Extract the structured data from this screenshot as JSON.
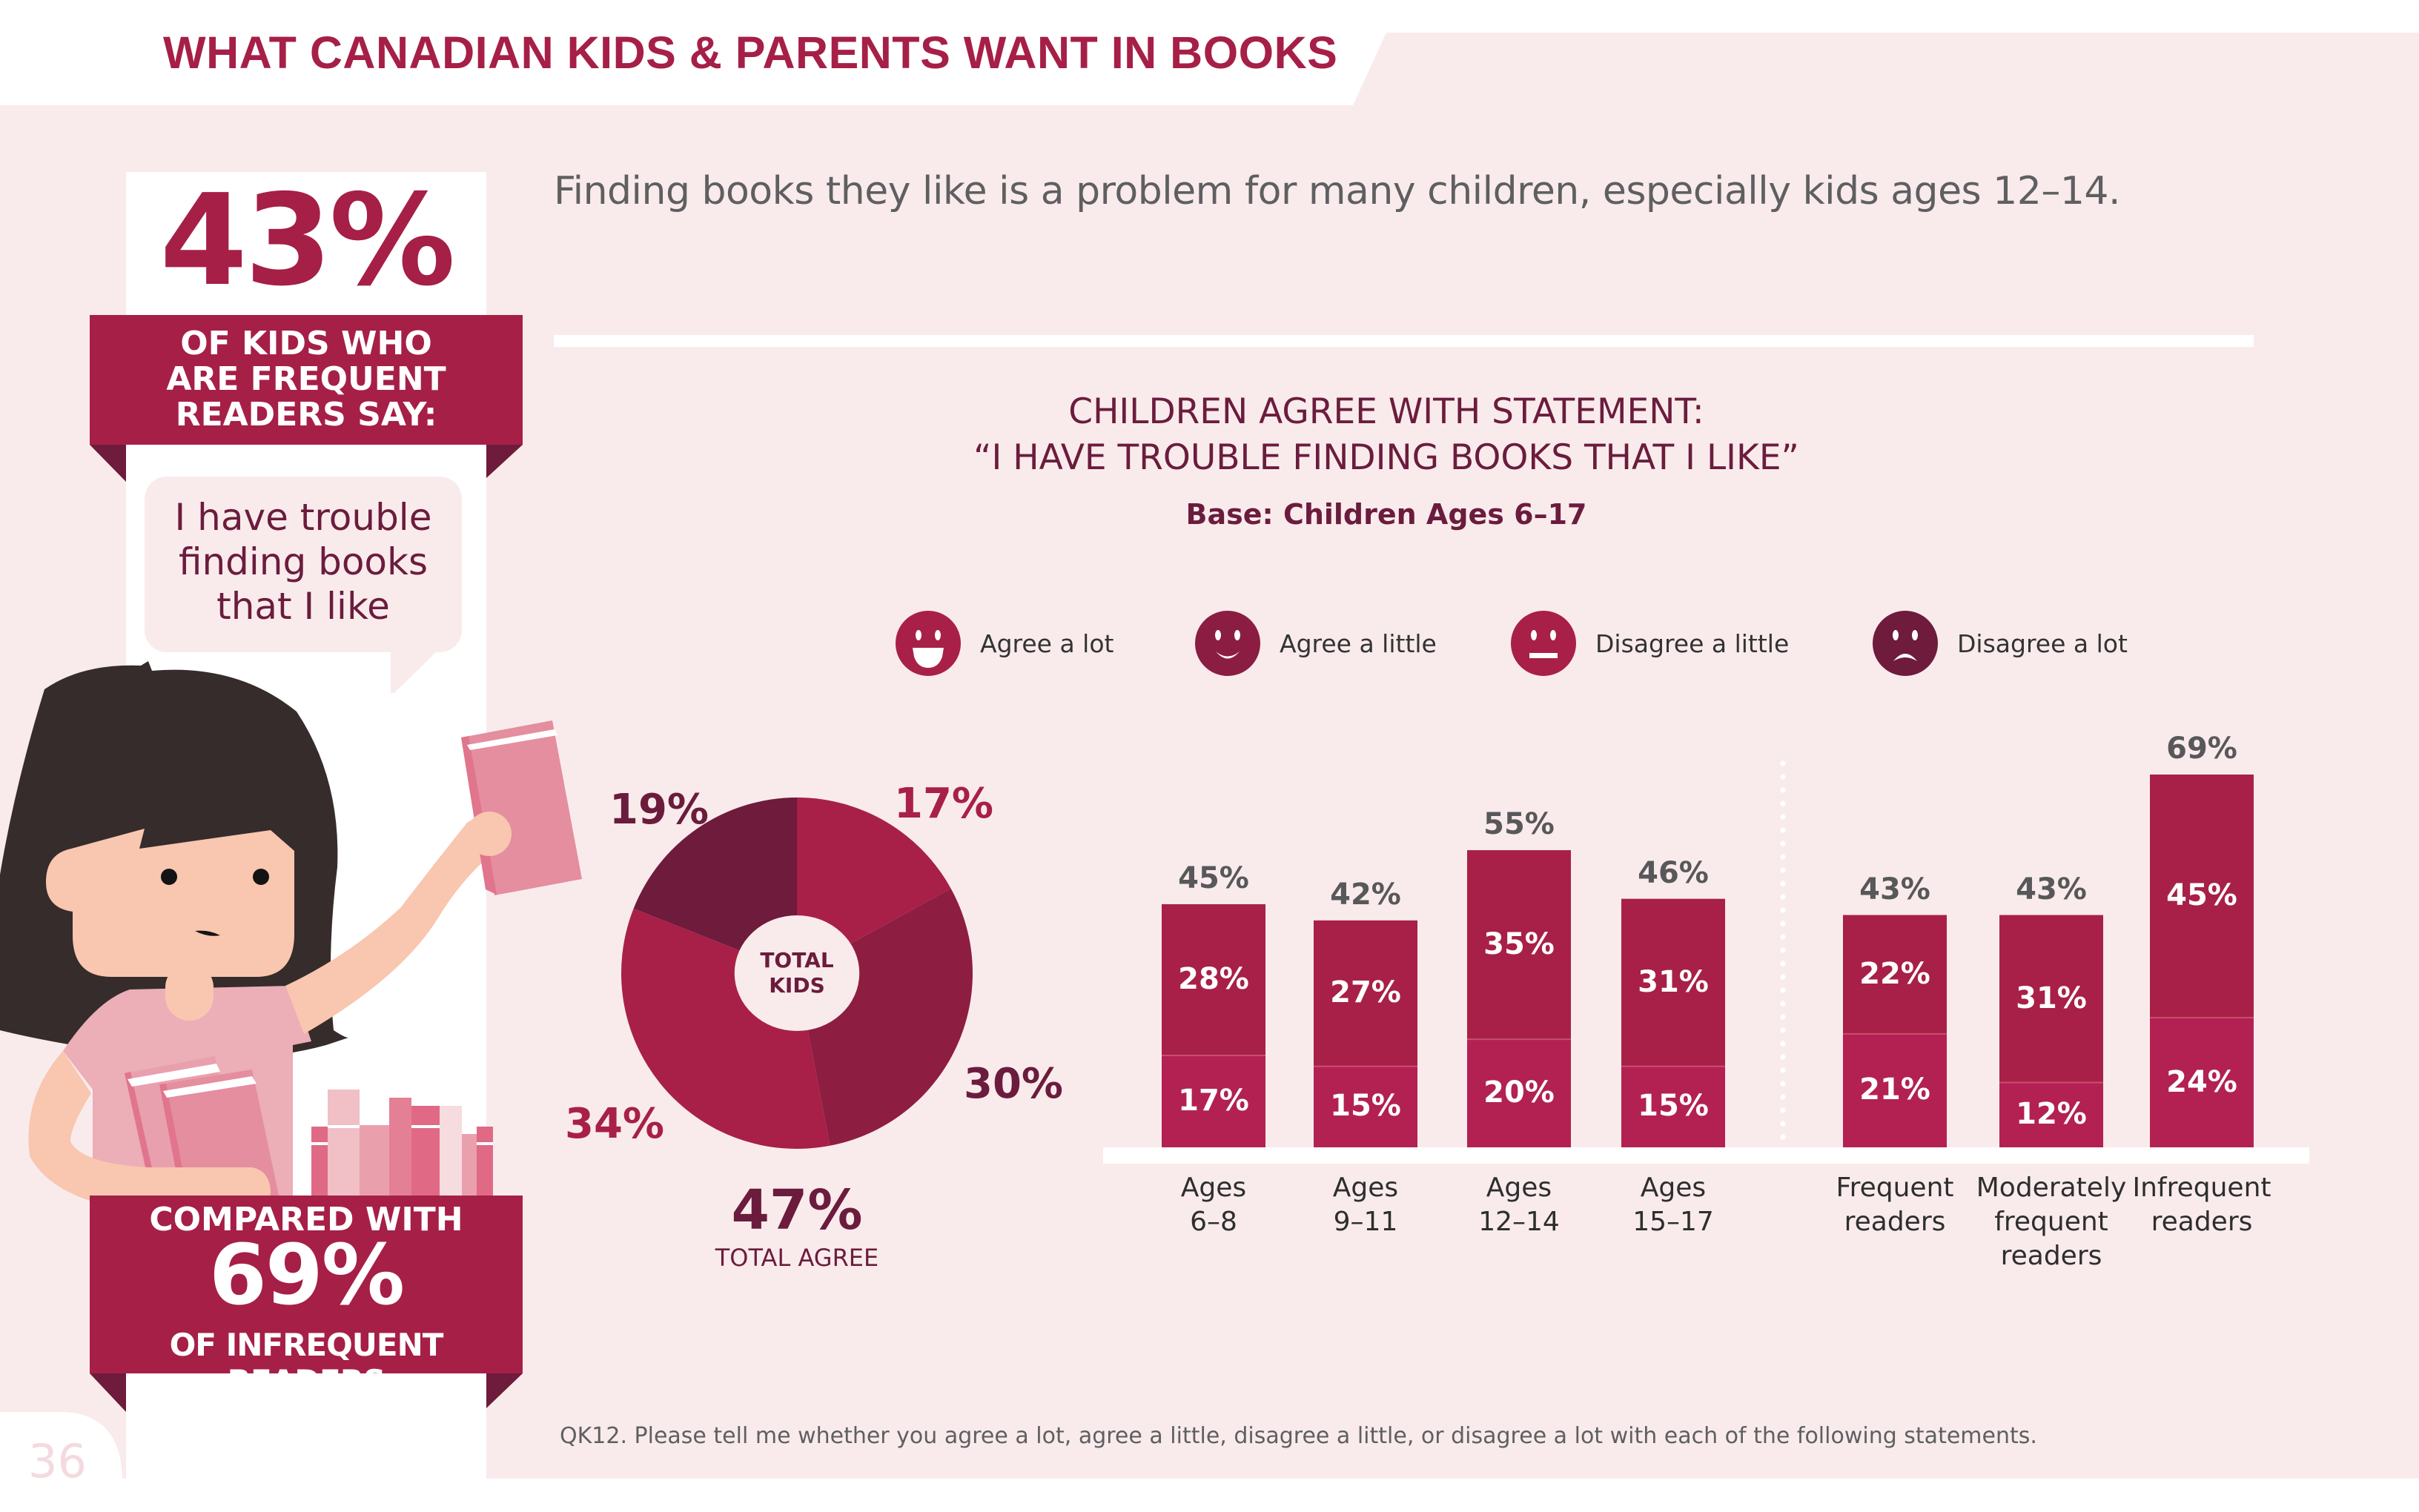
{
  "header": {
    "title": "WHAT CANADIAN KIDS & PARENTS WANT IN BOOKS"
  },
  "colors": {
    "brand": "#A61F47",
    "agree_a_lot": "#B22152",
    "agree_a_little": "#A82047",
    "pie_agree_a_lot": "#A82047",
    "pie_agree_a_little": "#8E1D42",
    "pie_disagree_a_little": "#A82047",
    "pie_disagree_a_lot": "#6E1B3C",
    "background": "#F9EBEC",
    "dark_text": "#6B1C3D"
  },
  "sidebar": {
    "stat_value": "43%",
    "stat_caption_lines": [
      "OF KIDS WHO",
      "ARE FREQUENT",
      "READERS SAY:"
    ],
    "quote_lines": [
      "I have trouble",
      "finding books",
      "that I like"
    ],
    "compare_line1": "COMPARED WITH",
    "compare_value": "69%",
    "compare_line3": "OF INFREQUENT READERS",
    "illustration": "girl-reaching-for-book-illustration"
  },
  "page_number": "36",
  "main": {
    "headline": "Finding books they like is a problem for many children, especially kids ages 12–14.",
    "footnote": "QK12. Please tell me whether you agree a lot, agree a little, disagree a little, or disagree a lot with each of the following statements."
  },
  "chart_data": [
    {
      "type": "pie",
      "title_lines": [
        "CHILDREN AGREE WITH STATEMENT:",
        "“I HAVE TROUBLE FINDING BOOKS THAT I LIKE”"
      ],
      "subtitle": "Base: Children Ages 6–17",
      "center_label_lines": [
        "TOTAL",
        "KIDS"
      ],
      "legend": [
        {
          "label": "Agree a lot",
          "icon": "big-smile-face-icon"
        },
        {
          "label": "Agree a little",
          "icon": "smile-face-icon"
        },
        {
          "label": "Disagree a little",
          "icon": "neutral-face-icon"
        },
        {
          "label": "Disagree a lot",
          "icon": "sad-face-icon"
        }
      ],
      "legend_position": "top",
      "slices": [
        {
          "label": "Agree a lot",
          "value": 17,
          "display": "17%"
        },
        {
          "label": "Agree a little",
          "value": 30,
          "display": "30%"
        },
        {
          "label": "Disagree a little",
          "value": 34,
          "display": "34%"
        },
        {
          "label": "Disagree a lot",
          "value": 19,
          "display": "19%"
        }
      ],
      "total_agree": "47%",
      "total_agree_label": "TOTAL AGREE"
    },
    {
      "type": "bar",
      "stacked": true,
      "ylim": [
        0,
        69
      ],
      "grid": false,
      "groups": [
        {
          "categories": [
            [
              "Ages",
              "6–8"
            ],
            [
              "Ages",
              "9–11"
            ],
            [
              "Ages",
              "12–14"
            ],
            [
              "Ages",
              "15–17"
            ]
          ],
          "series": [
            {
              "name": "Agree a lot",
              "values": [
                17,
                15,
                20,
                15
              ]
            },
            {
              "name": "Agree a little",
              "values": [
                28,
                27,
                35,
                31
              ]
            }
          ],
          "totals": [
            45,
            42,
            55,
            46
          ]
        },
        {
          "categories": [
            [
              "Frequent",
              "readers"
            ],
            [
              "Moderately",
              "frequent",
              "readers"
            ],
            [
              "Infrequent",
              "readers"
            ]
          ],
          "series": [
            {
              "name": "Agree a lot",
              "values": [
                21,
                12,
                24
              ]
            },
            {
              "name": "Agree a little",
              "values": [
                22,
                31,
                45
              ]
            }
          ],
          "totals": [
            43,
            43,
            69
          ]
        }
      ]
    }
  ]
}
